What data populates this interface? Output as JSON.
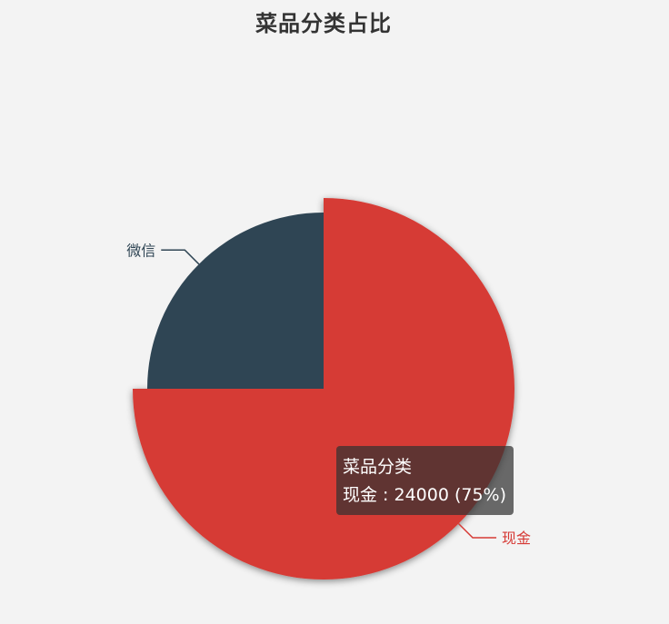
{
  "chart_data": {
    "type": "pie",
    "title": "菜品分类占比",
    "series_name": "菜品分类",
    "slices": [
      {
        "name": "现金",
        "value": 24000,
        "percent": 75,
        "color": "#d63a35",
        "label_color": "#d63a35"
      },
      {
        "name": "微信",
        "value": 8000,
        "percent": 25,
        "color": "#2f4554",
        "label_color": "#2f4554"
      }
    ],
    "highlighted_slice": "现金"
  },
  "tooltip": {
    "series": "菜品分类",
    "line": "现金 : 24000 (75%)"
  }
}
